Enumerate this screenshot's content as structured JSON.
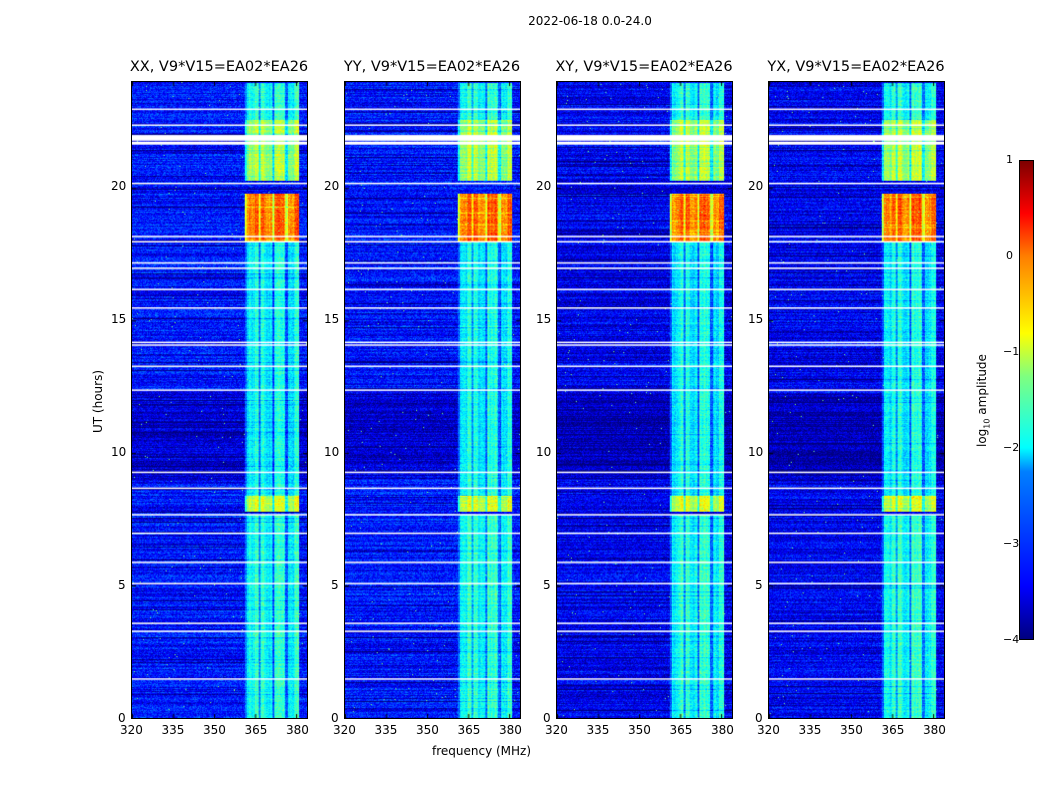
{
  "suptitle": "2022-06-18 0.0-24.0",
  "xlabel": "frequency (MHz)",
  "ylabel": "UT (hours)",
  "colorbar": {
    "label": "log",
    "label_sub": "10",
    "label_rest": " amplitude",
    "ticks": [
      "1",
      "0",
      "−1",
      "−2",
      "−3",
      "−4"
    ],
    "range": [
      -4,
      1
    ],
    "colormap": "jet"
  },
  "chart_data": {
    "type": "heatmap",
    "xlim": [
      320,
      384
    ],
    "ylim": [
      0,
      24
    ],
    "xticks": [
      "320",
      "335",
      "350",
      "365",
      "380"
    ],
    "yticks": [
      "0",
      "5",
      "10",
      "15",
      "20"
    ],
    "panels": [
      {
        "title": "XX, V9*V15=EA02*EA26"
      },
      {
        "title": "YY, V9*V15=EA02*EA26"
      },
      {
        "title": "XY, V9*V15=EA02*EA26"
      },
      {
        "title": "YX, V9*V15=EA02*EA26"
      }
    ],
    "background_log_amp": -3.3,
    "rfi_band_mhz": [
      361,
      381
    ],
    "rfi_band_levels": [
      {
        "t": [
          0,
          7.7
        ],
        "v": -2.0
      },
      {
        "t": [
          7.8,
          8.4
        ],
        "v": -1.1
      },
      {
        "t": [
          8.4,
          18.0
        ],
        "v": -2.1
      },
      {
        "t": [
          18.0,
          19.8
        ],
        "v": -0.2
      },
      {
        "t": [
          20.3,
          22.6
        ],
        "v": -1.3
      },
      {
        "t": [
          22.6,
          24
        ],
        "v": -2.0
      }
    ],
    "flagged_times_hours": [
      1.5,
      3.3,
      3.6,
      5.1,
      5.9,
      7.0,
      7.7,
      8.7,
      9.3,
      12.4,
      13.3,
      14.1,
      14.2,
      15.5,
      16.2,
      17.0,
      17.2,
      18.0,
      18.2,
      20.2,
      21.75,
      21.9,
      22.0,
      22.4,
      23.0
    ]
  }
}
